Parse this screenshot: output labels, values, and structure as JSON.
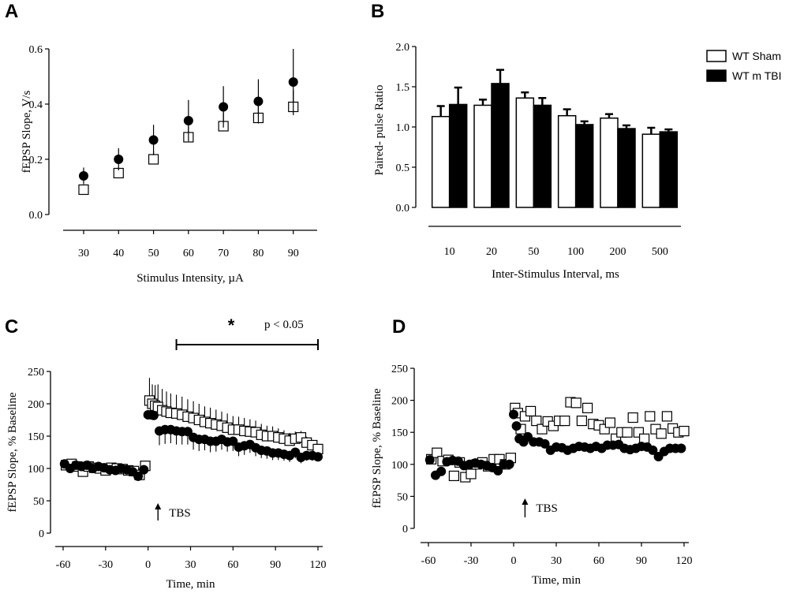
{
  "chart_data": [
    {
      "panel": "A",
      "type": "scatter",
      "xlabel": "Stimulus Intensity, µA",
      "ylabel": "fEPSP Slope, V/s",
      "categories": [
        "30",
        "40",
        "50",
        "60",
        "70",
        "80",
        "90"
      ],
      "y_ticks": [
        "0.0",
        "0.2",
        "0.4",
        "0.6"
      ],
      "ylim": [
        0,
        0.6
      ],
      "series": [
        {
          "marker": "open-square",
          "values": [
            0.09,
            0.15,
            0.2,
            0.28,
            0.32,
            0.35,
            0.39
          ],
          "err": [
            0.01,
            0.02,
            0.03,
            0.04,
            0.05,
            0.06,
            0.06
          ]
        },
        {
          "marker": "filled-circle",
          "values": [
            0.14,
            0.2,
            0.27,
            0.34,
            0.39,
            0.41,
            0.48
          ],
          "err": [
            0.03,
            0.04,
            0.055,
            0.075,
            0.075,
            0.08,
            0.12
          ]
        }
      ]
    },
    {
      "panel": "B",
      "type": "bar",
      "xlabel": "Inter-Stimulus Interval, ms",
      "ylabel": "Paired- pulse Ratio",
      "categories": [
        "10",
        "20",
        "50",
        "100",
        "200",
        "500"
      ],
      "y_ticks": [
        "0.0",
        "0.5",
        "1.0",
        "1.5",
        "2.0"
      ],
      "ylim": [
        0,
        2.0
      ],
      "legend_position": "top-right",
      "series": [
        {
          "name": "WT Sham",
          "color": "#ffffff",
          "values": [
            1.13,
            1.27,
            1.36,
            1.14,
            1.11,
            0.91
          ],
          "err": [
            0.13,
            0.07,
            0.07,
            0.08,
            0.05,
            0.08
          ]
        },
        {
          "name": "WT m TBI",
          "color": "#000000",
          "values": [
            1.28,
            1.54,
            1.27,
            1.03,
            0.98,
            0.94
          ],
          "err": [
            0.21,
            0.17,
            0.09,
            0.04,
            0.04,
            0.03
          ]
        }
      ]
    },
    {
      "panel": "C",
      "type": "scatter",
      "xlabel": "Time, min",
      "ylabel": "fEPSP Slope, % Baseline",
      "x_ticks": [
        "-60",
        "-30",
        "0",
        "30",
        "60",
        "90",
        "120"
      ],
      "y_ticks": [
        "0",
        "50",
        "100",
        "150",
        "200",
        "250"
      ],
      "xlim": [
        -60,
        120
      ],
      "ylim": [
        0,
        250
      ],
      "annotations": {
        "arrow_label": "TBS",
        "significance_star": "*",
        "p_value": "p < 0.05",
        "bracket_x": [
          20,
          120
        ]
      },
      "series": [
        {
          "marker": "open-square",
          "x": [
            -58,
            -54,
            -50,
            -46,
            -42,
            -38,
            -34,
            -30,
            -26,
            -22,
            -18,
            -14,
            -10,
            -6,
            -2,
            1,
            3,
            5,
            7,
            10,
            13,
            16,
            20,
            24,
            28,
            32,
            36,
            40,
            44,
            48,
            52,
            56,
            60,
            64,
            68,
            72,
            76,
            80,
            84,
            88,
            92,
            96,
            100,
            104,
            108,
            112,
            116,
            120
          ],
          "y": [
            105,
            107,
            103,
            95,
            103,
            101,
            100,
            97,
            101,
            100,
            99,
            97,
            96,
            90,
            104,
            205,
            200,
            197,
            195,
            190,
            188,
            186,
            185,
            183,
            180,
            178,
            175,
            172,
            170,
            168,
            166,
            163,
            160,
            160,
            158,
            157,
            156,
            152,
            150,
            150,
            148,
            146,
            143,
            146,
            148,
            140,
            136,
            130
          ],
          "err_up": [
            0,
            0,
            0,
            0,
            0,
            0,
            0,
            0,
            0,
            0,
            0,
            0,
            0,
            0,
            0,
            35,
            30,
            32,
            35,
            33,
            31,
            30,
            29,
            28,
            27,
            26,
            25,
            24,
            24,
            23,
            22,
            22,
            21,
            20,
            20,
            19,
            18,
            17,
            16,
            15,
            14,
            13,
            12,
            11,
            10,
            9,
            8,
            7
          ]
        },
        {
          "marker": "filled-circle",
          "x": [
            -59,
            -55,
            -51,
            -47,
            -43,
            -39,
            -35,
            -31,
            -27,
            -23,
            -19,
            -15,
            -11,
            -7,
            -3,
            0,
            2,
            4,
            8,
            12,
            16,
            20,
            24,
            28,
            32,
            36,
            40,
            44,
            48,
            52,
            56,
            60,
            64,
            68,
            72,
            76,
            80,
            84,
            88,
            92,
            96,
            100,
            104,
            108,
            112,
            116,
            120
          ],
          "y": [
            107,
            100,
            105,
            103,
            105,
            100,
            103,
            101,
            98,
            97,
            100,
            98,
            95,
            88,
            98,
            183,
            183,
            182,
            158,
            160,
            160,
            158,
            157,
            157,
            148,
            145,
            145,
            142,
            142,
            145,
            141,
            142,
            133,
            135,
            137,
            132,
            128,
            127,
            124,
            124,
            122,
            120,
            125,
            117,
            120,
            120,
            118
          ],
          "err_down": [
            0,
            0,
            0,
            0,
            0,
            0,
            0,
            0,
            0,
            0,
            0,
            0,
            0,
            0,
            0,
            0,
            0,
            0,
            22,
            22,
            21,
            21,
            20,
            20,
            19,
            18,
            17,
            17,
            16,
            16,
            15,
            15,
            14,
            14,
            13,
            13,
            12,
            12,
            11,
            11,
            10,
            10,
            9,
            9,
            8,
            8,
            7
          ]
        }
      ]
    },
    {
      "panel": "D",
      "type": "scatter",
      "xlabel": "Time, min",
      "ylabel": "fEPSP Slope, % Baseline",
      "x_ticks": [
        "-60",
        "-30",
        "0",
        "30",
        "60",
        "90",
        "120"
      ],
      "y_ticks": [
        "0",
        "50",
        "100",
        "150",
        "200",
        "250"
      ],
      "xlim": [
        -60,
        120
      ],
      "ylim": [
        0,
        250
      ],
      "annotations": {
        "arrow_label": "TBS"
      },
      "series": [
        {
          "marker": "open-square",
          "x": [
            -58,
            -54,
            -50,
            -46,
            -42,
            -38,
            -34,
            -30,
            -26,
            -22,
            -18,
            -14,
            -10,
            -6,
            -2,
            1,
            3,
            5,
            8,
            12,
            16,
            20,
            24,
            28,
            32,
            36,
            40,
            44,
            48,
            52,
            56,
            60,
            64,
            68,
            72,
            76,
            80,
            84,
            88,
            92,
            96,
            100,
            104,
            108,
            112,
            116,
            120
          ],
          "y": [
            108,
            118,
            105,
            107,
            82,
            103,
            80,
            85,
            100,
            103,
            97,
            108,
            108,
            100,
            110,
            188,
            180,
            155,
            175,
            183,
            168,
            155,
            167,
            160,
            168,
            168,
            197,
            196,
            168,
            188,
            163,
            161,
            155,
            165,
            140,
            150,
            150,
            173,
            150,
            140,
            175,
            155,
            148,
            175,
            156,
            150,
            152
          ]
        },
        {
          "marker": "filled-circle",
          "x": [
            -59,
            -55,
            -51,
            -47,
            -43,
            -39,
            -35,
            -31,
            -27,
            -23,
            -19,
            -15,
            -11,
            -7,
            -3,
            0,
            2,
            4,
            7,
            10,
            14,
            18,
            22,
            26,
            30,
            34,
            38,
            42,
            46,
            50,
            54,
            58,
            62,
            66,
            70,
            74,
            78,
            82,
            86,
            90,
            94,
            98,
            102,
            106,
            110,
            114,
            118
          ],
          "y": [
            107,
            83,
            89,
            104,
            106,
            105,
            98,
            100,
            102,
            100,
            98,
            95,
            90,
            100,
            100,
            178,
            160,
            140,
            135,
            143,
            135,
            135,
            132,
            122,
            127,
            126,
            122,
            125,
            128,
            127,
            125,
            128,
            125,
            130,
            130,
            131,
            125,
            123,
            125,
            128,
            127,
            122,
            112,
            120,
            125,
            125,
            125
          ]
        }
      ]
    }
  ]
}
